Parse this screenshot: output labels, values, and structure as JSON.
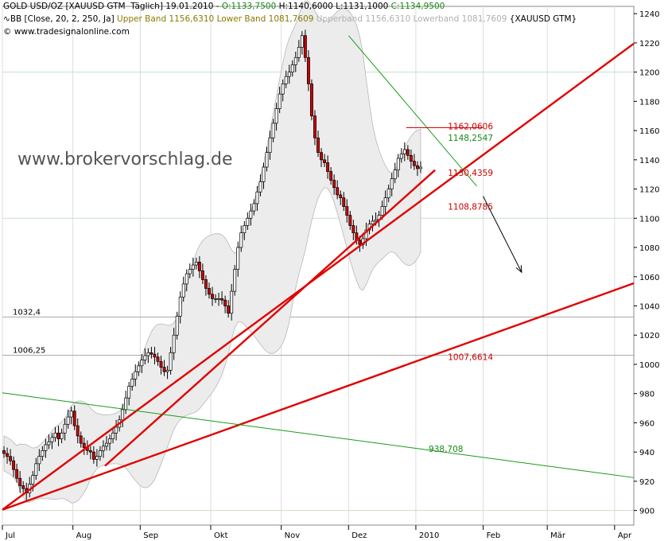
{
  "header": {
    "line1_prefix": "GOLD USD/OZ [XAUUSD GTM  Täglich] 19.01.2010 - ",
    "open": "O:1133,7500",
    "high": " H:1140,6000",
    "low": " L:1131,1000",
    "close": " C:1134,9500",
    "line2_prefix": "BB [Close, 20, 2, 250, Ja] ",
    "upper_band": "Upper Band 1156,6310",
    "lower_band": " Lower Band 1081,7609",
    "gray_bands": " Upperband 1156,6310 Lowerband 1081,7609",
    "line2_suffix": " {XAUUSD GTM}",
    "copyright": "© www.tradesignalonline.com"
  },
  "watermark": "www.brokervorschlag.de",
  "colors": {
    "candle_up": "#ffffff",
    "candle_down": "#cc0000",
    "trend_red": "#e00000",
    "trend_green": "#1a9a1a",
    "band_fill": "#ececec",
    "grid": "#c8e0c8"
  },
  "chart_data": {
    "type": "candlestick",
    "ylim": [
      890,
      1245
    ],
    "y_ticks": [
      900,
      920,
      940,
      960,
      980,
      1000,
      1020,
      1040,
      1060,
      1080,
      1100,
      1120,
      1140,
      1160,
      1180,
      1200,
      1220,
      1240
    ],
    "y_tick_labels": [
      "900",
      "920",
      "940",
      "960",
      "980",
      "1000",
      "1020",
      "1040",
      "1060",
      "1080",
      "1100",
      "1120",
      "1140",
      "1160",
      "1180",
      "1200",
      "1220",
      "1240"
    ],
    "x_labels": [
      "Jul",
      "Aug",
      "Sep",
      "Okt",
      "Nov",
      "Dez",
      "2010",
      "Feb",
      "Mär",
      "Apr"
    ],
    "x_label_positions": [
      0,
      22,
      43,
      65,
      87,
      108,
      129,
      150,
      170,
      191
    ],
    "total_slots": 197,
    "closes": [
      939,
      937,
      934,
      928,
      922,
      917,
      915,
      912,
      918,
      924,
      932,
      937,
      941,
      945,
      947,
      950,
      953,
      949,
      953,
      959,
      964,
      968,
      958,
      951,
      946,
      943,
      941,
      940,
      935,
      937,
      941,
      944,
      946,
      949,
      953,
      957,
      962,
      969,
      977,
      985,
      990,
      995,
      999,
      1003,
      1006,
      1008,
      1007,
      1005,
      1002,
      998,
      995,
      996,
      1008,
      1020,
      1033,
      1046,
      1055,
      1062,
      1065,
      1068,
      1070,
      1064,
      1058,
      1052,
      1048,
      1045,
      1045,
      1045,
      1044,
      1040,
      1035,
      1050,
      1065,
      1080,
      1090,
      1095,
      1100,
      1105,
      1110,
      1118,
      1125,
      1135,
      1145,
      1155,
      1165,
      1175,
      1185,
      1192,
      1197,
      1200,
      1205,
      1210,
      1217,
      1225,
      1210,
      1192,
      1170,
      1155,
      1145,
      1140,
      1138,
      1132,
      1126,
      1121,
      1116,
      1114,
      1108,
      1102,
      1095,
      1090,
      1085,
      1082,
      1086,
      1092,
      1096,
      1098,
      1099,
      1102,
      1108,
      1114,
      1120,
      1127,
      1133,
      1141,
      1144,
      1147,
      1143,
      1139,
      1136,
      1134,
      1135
    ],
    "horizontal_lines": [
      {
        "label": "1032,4",
        "value": 1032.4
      },
      {
        "label": "1006,25",
        "value": 1006.25
      },
      {
        "value": 1100
      },
      {
        "value": 1200
      },
      {
        "value": 900
      }
    ],
    "trendlines": [
      {
        "color": "red",
        "p1": [
          0,
          900.5
        ],
        "p2": [
          197,
          1219.5
        ]
      },
      {
        "color": "red",
        "p1": [
          0,
          900.5
        ],
        "p2": [
          197,
          1055.5
        ]
      },
      {
        "color": "red",
        "p1": [
          32,
          930.5
        ],
        "p2": [
          135,
          1133
        ]
      },
      {
        "color": "green",
        "p1": [
          0,
          980.5
        ],
        "p2": [
          197,
          922.5
        ]
      },
      {
        "color": "green",
        "p1": [
          108,
          1225
        ],
        "p2": [
          148,
          1122
        ]
      }
    ],
    "annotations": [
      {
        "text": "1162,0606",
        "x": 139,
        "y": 1161,
        "color": "red"
      },
      {
        "text": "1148,2547",
        "x": 139,
        "y": 1153,
        "color": "green"
      },
      {
        "text": "1130,4359",
        "x": 139,
        "y": 1129,
        "color": "red"
      },
      {
        "text": "1108,8785",
        "x": 139,
        "y": 1106,
        "color": "red"
      },
      {
        "text": "1007,6614",
        "x": 139,
        "y": 1003,
        "color": "red"
      },
      {
        "text": "938,708",
        "x": 133,
        "y": 940,
        "color": "green"
      }
    ],
    "arrow": {
      "from": [
        150,
        1115
      ],
      "to": [
        162,
        1063
      ]
    }
  }
}
